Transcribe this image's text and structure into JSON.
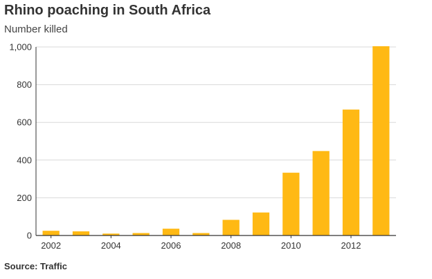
{
  "chart_data": {
    "type": "bar",
    "title": "Rhino poaching in South Africa",
    "subtitle": "Number killed",
    "source": "Source: Traffic",
    "categories": [
      "2002",
      "2003",
      "2004",
      "2005",
      "2006",
      "2007",
      "2008",
      "2009",
      "2010",
      "2011",
      "2012",
      "2013"
    ],
    "values": [
      25,
      22,
      10,
      13,
      36,
      13,
      83,
      122,
      333,
      448,
      668,
      1004
    ],
    "x_tick_labels": [
      "2002",
      "2004",
      "2006",
      "2008",
      "2010",
      "2012"
    ],
    "y_ticks": [
      0,
      200,
      400,
      600,
      800,
      1000
    ],
    "y_tick_labels": [
      "0",
      "200",
      "400",
      "600",
      "800",
      "1,000"
    ],
    "ylim": [
      0,
      1000
    ],
    "xlabel": "",
    "ylabel": "",
    "grid": true,
    "legend": "none",
    "bar_color": "#ffb914",
    "grid_color": "#d9d9d9",
    "axis_color": "#333333"
  }
}
